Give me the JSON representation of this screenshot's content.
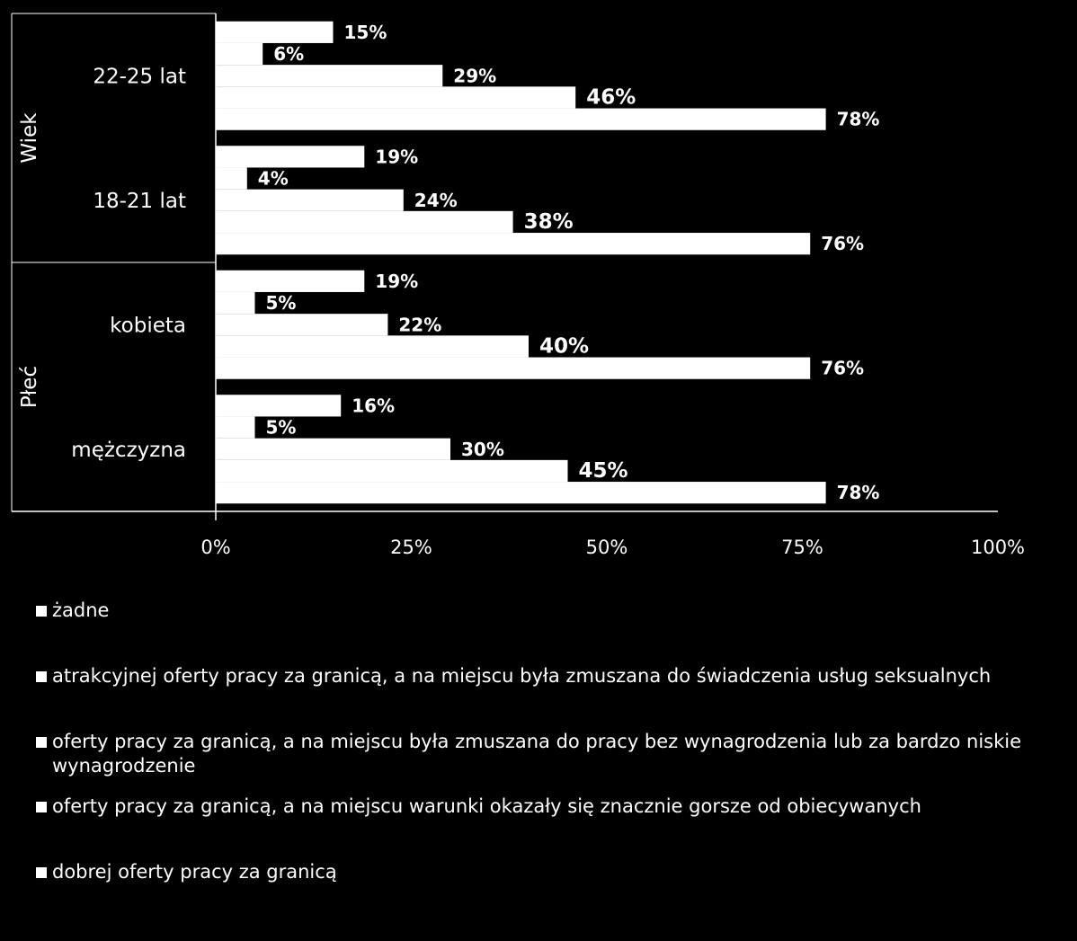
{
  "chart_data": {
    "type": "bar",
    "orientation": "horizontal",
    "title": "",
    "xlabel": "",
    "ylabel": "",
    "xlim": [
      0,
      100
    ],
    "x_ticks": [
      "0%",
      "25%",
      "50%",
      "75%",
      "100%"
    ],
    "grid": false,
    "legend_position": "bottom",
    "groups": [
      {
        "name": "Wiek",
        "categories": [
          "22-25 lat",
          "18-21 lat"
        ]
      },
      {
        "name": "Płeć",
        "categories": [
          "kobieta",
          "mężczyzna"
        ]
      }
    ],
    "categories": [
      "22-25 lat",
      "18-21 lat",
      "kobieta",
      "mężczyzna"
    ],
    "series": [
      {
        "name": "żadne",
        "values": [
          15,
          19,
          19,
          16
        ],
        "labels": [
          "15%",
          "19%",
          "19%",
          "16%"
        ]
      },
      {
        "name": "atrakcyjnej oferty pracy za granicą, a na miejscu była zmuszana do świadczenia usług seksualnych",
        "values": [
          6,
          4,
          5,
          5
        ],
        "labels": [
          "6%",
          "4%",
          "5%",
          "5%"
        ]
      },
      {
        "name": "oferty pracy za granicą, a na miejscu była zmuszana do pracy bez wynagrodzenia lub za bardzo niskie wynagrodzenie",
        "values": [
          29,
          24,
          22,
          30
        ],
        "labels": [
          "29%",
          "24%",
          "22%",
          "30%"
        ]
      },
      {
        "name": "oferty pracy za granicą, a na miejscu warunki okazały się znacznie gorsze od obiecywanych",
        "values": [
          46,
          38,
          40,
          45
        ],
        "labels": [
          "46%",
          "38%",
          "40%",
          "45%"
        ]
      },
      {
        "name": "dobrej oferty pracy za granicą",
        "values": [
          78,
          76,
          76,
          78
        ],
        "labels": [
          "78%",
          "76%",
          "76%",
          "78%"
        ]
      }
    ],
    "colors": {
      "background": "#000000",
      "bar": "#ffffff",
      "text": "#ffffff"
    }
  }
}
